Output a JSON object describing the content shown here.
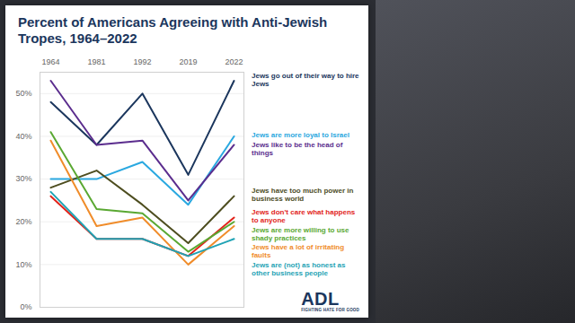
{
  "chart_data": {
    "type": "line",
    "title": "Percent of Americans Agreeing with Anti-Jewish Tropes, 1964–2022",
    "categories": [
      "1964",
      "1981",
      "1992",
      "2019",
      "2022"
    ],
    "series": [
      {
        "name": "Jews go out of their way to hire Jews",
        "color": "#1b365d",
        "values": [
          48,
          38,
          50,
          31,
          53
        ]
      },
      {
        "name": "Jews are more loyal to Israel",
        "color": "#2aa8e0",
        "values": [
          30,
          30,
          34,
          24,
          40
        ]
      },
      {
        "name": "Jews like to be the head of things",
        "color": "#5b2d8e",
        "values": [
          53,
          38,
          39,
          25,
          38
        ]
      },
      {
        "name": "Jews have too much power in business world",
        "color": "#4d4d1f",
        "values": [
          28,
          32,
          24,
          15,
          26
        ]
      },
      {
        "name": "Jews don't care what happens to anyone",
        "color": "#e2231a",
        "values": [
          26,
          16,
          16,
          12,
          21
        ]
      },
      {
        "name": "Jews are more willing to use shady practices",
        "color": "#5aa832",
        "values": [
          41,
          23,
          22,
          13,
          20
        ]
      },
      {
        "name": "Jews have a lot of irritating faults",
        "color": "#f08c2a",
        "values": [
          39,
          19,
          21,
          10,
          19
        ]
      },
      {
        "name": "Jews are (not) as honest as other business people",
        "color": "#1fa3b5",
        "values": [
          27,
          16,
          16,
          12,
          16
        ]
      }
    ],
    "ylim": [
      0,
      55
    ],
    "yticks": [
      {
        "value": 0,
        "label": "0%"
      },
      {
        "value": 10,
        "label": "10%"
      },
      {
        "value": 20,
        "label": "20%"
      },
      {
        "value": 30,
        "label": "30%"
      },
      {
        "value": 40,
        "label": "40%"
      },
      {
        "value": 50,
        "label": "50%"
      }
    ],
    "grid": true,
    "annotations": [
      "ADL",
      "FIGHTING HATE FOR GOOD"
    ]
  }
}
